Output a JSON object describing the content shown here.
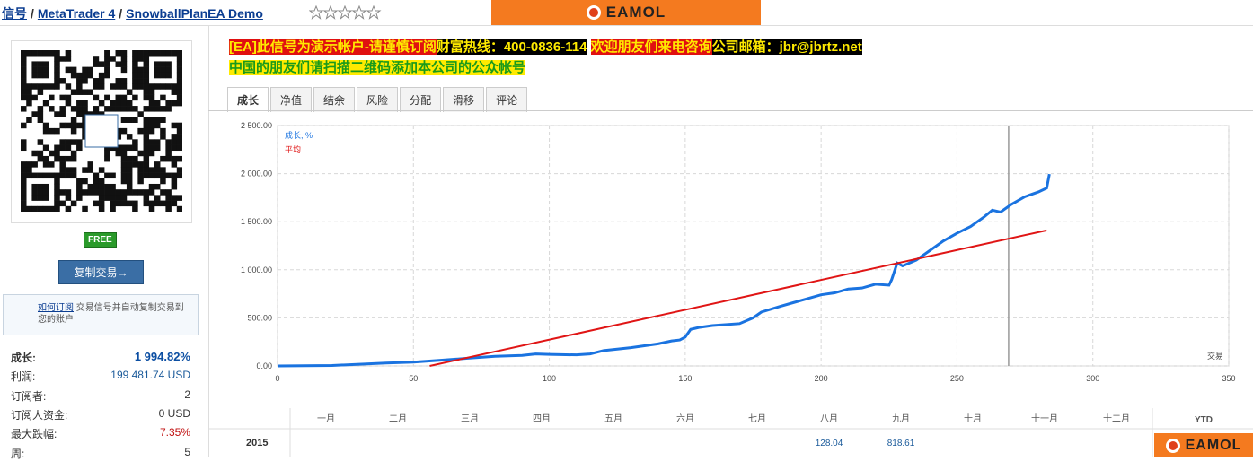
{
  "breadcrumb": {
    "items": [
      "信号",
      "MetaTrader 4",
      "SnowballPlanEA Demo"
    ],
    "separator": "/"
  },
  "logo": {
    "text": "EAMOL"
  },
  "sidebar": {
    "badge": "FREE",
    "copy_button": "复制交易→",
    "subscribe_note": {
      "link": "如何订阅",
      "text": "交易信号并自动复制交易到您的账户"
    },
    "stats": [
      {
        "label": "成长:",
        "value": "1 994.82%"
      },
      {
        "label": "利润:",
        "value": "199 481.74 USD"
      },
      {
        "label": "订阅者:",
        "value": "2"
      },
      {
        "label": "订阅人资金:",
        "value": "0 USD"
      },
      {
        "label": "最大跌幅:",
        "value": "7.35%"
      },
      {
        "label": "周:",
        "value": "5"
      }
    ]
  },
  "banner": {
    "line1": [
      "[EA]此信号为演示帐户-请谨慎订阅",
      "财富热线：400-0836-114",
      "欢迎朋友们来电咨询",
      "公司邮箱：jbr@jbrtz.net"
    ],
    "line2": "中国的朋友们请扫描二维码添加本公司的公众帐号"
  },
  "tabs": [
    "成长",
    "净值",
    "结余",
    "风险",
    "分配",
    "滑移",
    "评论"
  ],
  "chart_data": {
    "type": "line",
    "x_label": "交易",
    "series": [
      {
        "name": "成长, %",
        "color": "#1a73e0",
        "x": [
          0,
          20,
          40,
          50,
          60,
          70,
          80,
          90,
          95,
          100,
          110,
          115,
          120,
          130,
          140,
          145,
          148,
          150,
          152,
          155,
          160,
          170,
          175,
          178,
          185,
          190,
          200,
          205,
          210,
          215,
          220,
          225,
          226,
          228,
          230,
          235,
          240,
          245,
          250,
          255,
          260,
          263,
          266,
          270,
          275,
          280,
          283,
          284
        ],
        "values": [
          0,
          5,
          30,
          40,
          60,
          80,
          100,
          110,
          125,
          120,
          115,
          125,
          160,
          190,
          230,
          260,
          270,
          300,
          380,
          400,
          420,
          440,
          500,
          560,
          620,
          660,
          740,
          760,
          800,
          810,
          850,
          840,
          900,
          1070,
          1040,
          1100,
          1200,
          1300,
          1380,
          1450,
          1550,
          1620,
          1600,
          1680,
          1760,
          1810,
          1850,
          1995
        ]
      },
      {
        "name": "平均",
        "color": "#e01515",
        "x": [
          56,
          283
        ],
        "values": [
          0,
          1410
        ]
      }
    ],
    "marker_x": 269,
    "xlim": [
      0,
      350
    ],
    "xticks": [
      0,
      50,
      100,
      150,
      200,
      250,
      300,
      350
    ],
    "ylim": [
      0,
      2500
    ],
    "yticks": [
      {
        "value": 0,
        "label": "0.00"
      },
      {
        "value": 500,
        "label": "500.00"
      },
      {
        "value": 1000,
        "label": "1 000.00"
      },
      {
        "value": 1500,
        "label": "1 500.00"
      },
      {
        "value": 2000,
        "label": "2 000.00"
      },
      {
        "value": 2500,
        "label": "2 500.00"
      }
    ],
    "grid": true
  },
  "table": {
    "months": [
      "一月",
      "二月",
      "三月",
      "四月",
      "五月",
      "六月",
      "七月",
      "八月",
      "九月",
      "十月",
      "十一月",
      "十二月"
    ],
    "total": "YTD",
    "rows": [
      {
        "year": "2015",
        "cells": [
          null,
          null,
          null,
          null,
          null,
          null,
          null,
          "128.04",
          "818.61",
          null,
          null,
          null
        ],
        "total": null
      }
    ]
  }
}
